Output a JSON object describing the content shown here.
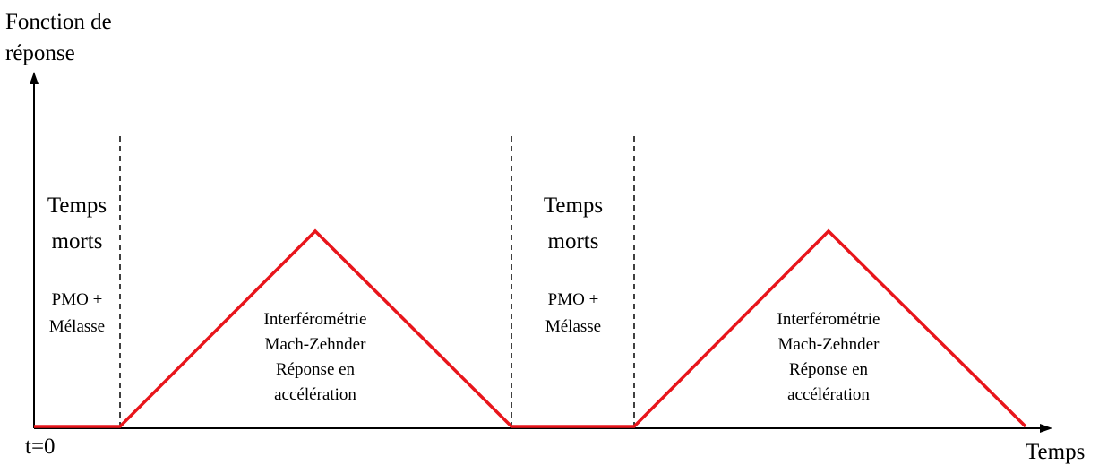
{
  "axes": {
    "y_title_line1": "Fonction de",
    "y_title_line2": "réponse",
    "x_title": "Temps",
    "origin_label": "t=0"
  },
  "phases": [
    {
      "kind": "dead-time",
      "title_line1": "Temps",
      "title_line2": "morts",
      "detail_line1": "PMO +",
      "detail_line2": "Mélasse"
    },
    {
      "kind": "interferometry",
      "line1": "Interférométrie",
      "line2": "Mach-Zehnder",
      "line3": "Réponse en",
      "line4": "accélération"
    },
    {
      "kind": "dead-time",
      "title_line1": "Temps",
      "title_line2": "morts",
      "detail_line1": "PMO +",
      "detail_line2": "Mélasse"
    },
    {
      "kind": "interferometry",
      "line1": "Interférométrie",
      "line2": "Mach-Zehnder",
      "line3": "Réponse en",
      "line4": "accélération"
    }
  ],
  "colors": {
    "response_curve": "#e8151b",
    "axes": "#000000",
    "dashed_separators": "#000000"
  }
}
